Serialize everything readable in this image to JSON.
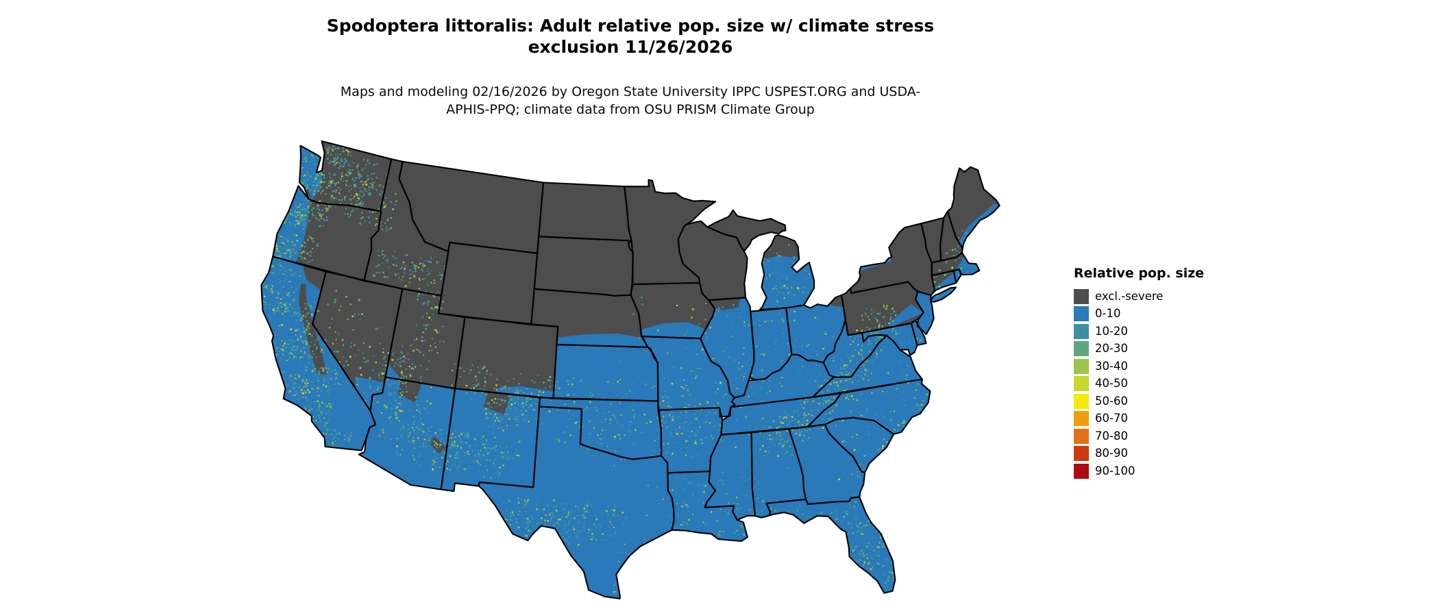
{
  "title": "Spodoptera littoralis: Adult relative pop. size w/ climate stress exclusion 11/26/2026",
  "subtitle": "Maps and modeling 02/16/2026 by Oregon State University IPPC USPEST.ORG and USDA-APHIS-PPQ; climate data from OSU PRISM Climate Group",
  "legend": {
    "title": "Relative pop. size",
    "items": [
      {
        "label": "excl.-severe",
        "color": "#4d4d4d"
      },
      {
        "label": "0-10",
        "color": "#2a79b8"
      },
      {
        "label": "10-20",
        "color": "#3f8fa2"
      },
      {
        "label": "20-30",
        "color": "#5ea77c"
      },
      {
        "label": "30-40",
        "color": "#9ec34c"
      },
      {
        "label": "40-50",
        "color": "#c9d72f"
      },
      {
        "label": "50-60",
        "color": "#f4e90b"
      },
      {
        "label": "60-70",
        "color": "#ef9e0c"
      },
      {
        "label": "70-80",
        "color": "#e2701a"
      },
      {
        "label": "80-90",
        "color": "#cc3b10"
      },
      {
        "label": "90-100",
        "color": "#ab0c12"
      }
    ]
  },
  "map": {
    "region": "Continental United States",
    "dominant_classes": [
      "excl.-severe",
      "0-10"
    ]
  }
}
